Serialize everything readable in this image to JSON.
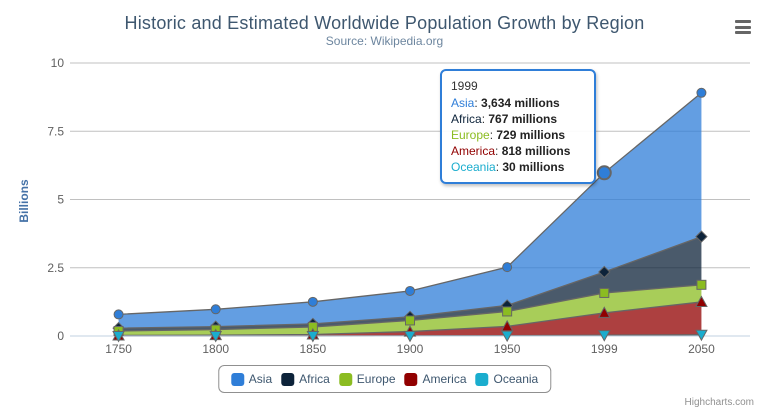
{
  "header": {
    "title": "Historic and Estimated Worldwide Population Growth by Region",
    "subtitle": "Source: Wikipedia.org"
  },
  "chart_data": {
    "type": "area",
    "stacking": "normal",
    "stack_note": "first series rendered on top of stack",
    "categories": [
      "1750",
      "1800",
      "1850",
      "1900",
      "1950",
      "1999",
      "2050"
    ],
    "series": [
      {
        "name": "Asia",
        "color": "#2f7ed8",
        "marker": "circle",
        "values": [
          502,
          635,
          809,
          947,
          1402,
          3634,
          5268
        ]
      },
      {
        "name": "Africa",
        "color": "#0d233a",
        "marker": "diamond",
        "values": [
          106,
          107,
          111,
          133,
          221,
          767,
          1766
        ]
      },
      {
        "name": "Europe",
        "color": "#8bbc21",
        "marker": "square",
        "values": [
          163,
          203,
          276,
          408,
          547,
          729,
          628
        ]
      },
      {
        "name": "America",
        "color": "#910000",
        "marker": "triangle",
        "values": [
          18,
          31,
          54,
          156,
          339,
          818,
          1201
        ]
      },
      {
        "name": "Oceania",
        "color": "#1aadce",
        "marker": "triangle-down",
        "values": [
          2,
          2,
          2,
          6,
          13,
          30,
          46
        ]
      }
    ],
    "values_unit": "millions",
    "ylabel": "Billions",
    "yticks": [
      0,
      2.5,
      5,
      7.5,
      10
    ],
    "ylim": [
      0,
      10
    ],
    "grid": true,
    "legend_position": "bottom",
    "line_color": "#666666",
    "grid_color": "#C0C0C0",
    "axis_line_color": "#C0D0E0",
    "fill_opacity": 0.75
  },
  "tooltip": {
    "category": "1999",
    "rows": [
      {
        "label": "Asia",
        "value": "3,634 millions",
        "color": "#2f7ed8"
      },
      {
        "label": "Africa",
        "value": "767 millions",
        "color": "#0d233a"
      },
      {
        "label": "Europe",
        "value": "729 millions",
        "color": "#8bbc21"
      },
      {
        "label": "America",
        "value": "818 millions",
        "color": "#910000"
      },
      {
        "label": "Oceania",
        "value": "30 millions",
        "color": "#1aadce"
      }
    ],
    "border_color": "#2f7ed8",
    "hovered_point": {
      "series": "Asia",
      "category": "1999"
    }
  },
  "credits": {
    "label": "Highcharts.com"
  }
}
